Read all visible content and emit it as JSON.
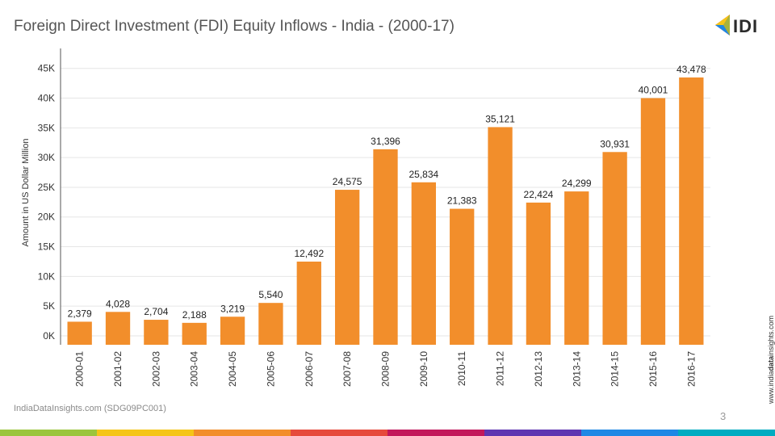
{
  "header": {
    "title": "Foreign Direct Investment (FDI) Equity Inflows - India - (2000-17)"
  },
  "logo": {
    "text": "IDI"
  },
  "footer": {
    "source": "IndiaDataInsights.com (SDG09PC001)",
    "page_number": "3"
  },
  "side_url": {
    "before": "www.india",
    "bold": "data",
    "after": "insights.com"
  },
  "colors": {
    "bar": "#f28e2b",
    "strip": [
      "#9bc53d",
      "#f5c518",
      "#f28e2b",
      "#e64a3c",
      "#c2185b",
      "#5e35b1",
      "#1e88e5",
      "#00acc1"
    ]
  },
  "chart_data": {
    "type": "bar",
    "title": "",
    "xlabel": "",
    "ylabel": "Amount in US Dollar Million",
    "categories": [
      "2000-01",
      "2001-02",
      "2002-03",
      "2003-04",
      "2004-05",
      "2005-06",
      "2006-07",
      "2007-08",
      "2008-09",
      "2009-10",
      "2010-11",
      "2011-12",
      "2012-13",
      "2013-14",
      "2014-15",
      "2015-16",
      "2016-17"
    ],
    "values": [
      2379,
      4028,
      2704,
      2188,
      3219,
      5540,
      12492,
      24575,
      31396,
      25834,
      21383,
      35121,
      22424,
      24299,
      30931,
      40001,
      43478
    ],
    "value_labels": [
      "2,379",
      "4,028",
      "2,704",
      "2,188",
      "3,219",
      "5,540",
      "12,492",
      "24,575",
      "31,396",
      "25,834",
      "21,383",
      "35,121",
      "22,424",
      "24,299",
      "30,931",
      "40,001",
      "43,478"
    ],
    "yticks": [
      0,
      5000,
      10000,
      15000,
      20000,
      25000,
      30000,
      35000,
      40000,
      45000
    ],
    "ytick_labels": [
      "0K",
      "5K",
      "10K",
      "15K",
      "20K",
      "25K",
      "30K",
      "35K",
      "40K",
      "45K"
    ],
    "ylim": [
      -1500,
      47000
    ],
    "grid": true,
    "legend": "none"
  }
}
